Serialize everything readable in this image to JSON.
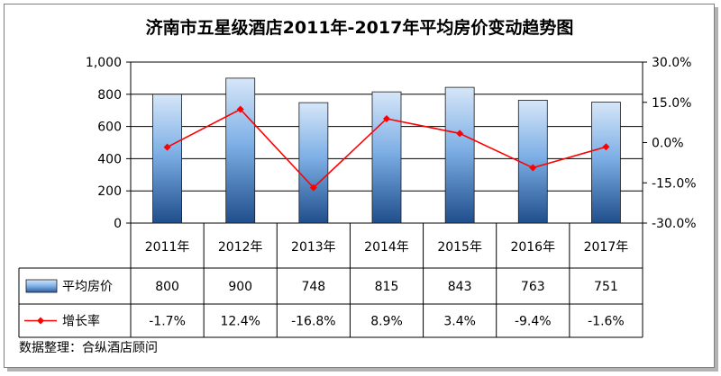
{
  "chart_data": {
    "type": "bar",
    "title": "济南市五星级酒店2011年-2017年平均房价变动趋势图",
    "categories": [
      "2011年",
      "2012年",
      "2013年",
      "2014年",
      "2015年",
      "2016年",
      "2017年"
    ],
    "series": [
      {
        "name": "平均房价",
        "type": "bar",
        "axis": "left",
        "values": [
          800,
          900,
          748,
          815,
          843,
          763,
          751
        ],
        "labels": [
          "800",
          "900",
          "748",
          "815",
          "843",
          "763",
          "751"
        ],
        "color": "#5b8fd0"
      },
      {
        "name": "增长率",
        "type": "line",
        "axis": "right",
        "values": [
          -1.7,
          12.4,
          -16.8,
          8.9,
          3.4,
          -9.4,
          -1.6
        ],
        "labels": [
          "-1.7%",
          "12.4%",
          "-16.8%",
          "8.9%",
          "3.4%",
          "-9.4%",
          "-1.6%"
        ],
        "color": "#ff0000"
      }
    ],
    "y_left": {
      "min": 0,
      "max": 1000,
      "ticks": [
        "0",
        "200",
        "400",
        "600",
        "800",
        "1,000"
      ]
    },
    "y_right": {
      "min": -30,
      "max": 30,
      "ticks": [
        "-30.0%",
        "-15.0%",
        "0.0%",
        "15.0%",
        "30.0%"
      ]
    },
    "grid": true,
    "legend": "data-table",
    "source_note": "数据整理：合纵酒店顾问"
  }
}
